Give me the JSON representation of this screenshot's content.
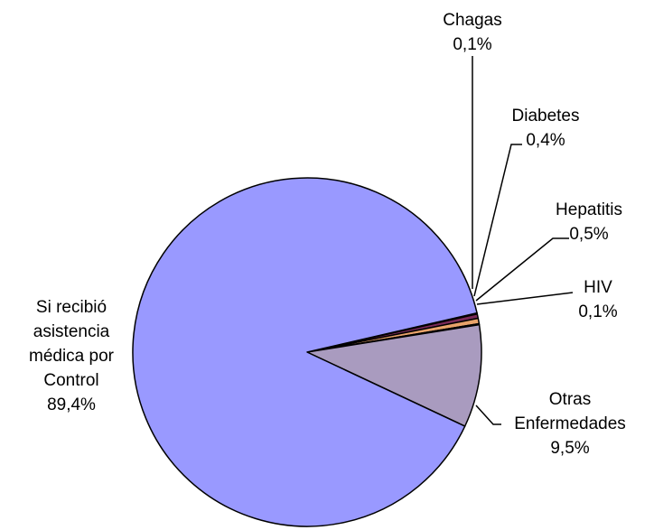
{
  "chart_data": {
    "type": "pie",
    "title": "",
    "slices": [
      {
        "label_lines": [
          "Chagas",
          "0,1%"
        ],
        "value": 0.1,
        "color": "#2b2b66"
      },
      {
        "label_lines": [
          "Diabetes",
          "0,4%"
        ],
        "value": 0.4,
        "color": "#7a2a58"
      },
      {
        "label_lines": [
          "Hepatitis",
          "0,5%"
        ],
        "value": 0.5,
        "color": "#e8a36a"
      },
      {
        "label_lines": [
          "HIV",
          "0,1%"
        ],
        "value": 0.1,
        "color": "#8ab4d8"
      },
      {
        "label_lines": [
          "Otras",
          "Enfermedades",
          "9,5%"
        ],
        "value": 9.5,
        "color": "#a99bbf"
      },
      {
        "label_lines": [
          "Si recibió",
          "asistencia",
          "médica por",
          "Control",
          "89,4%"
        ],
        "value": 89.4,
        "color": "#9999ff"
      }
    ]
  }
}
